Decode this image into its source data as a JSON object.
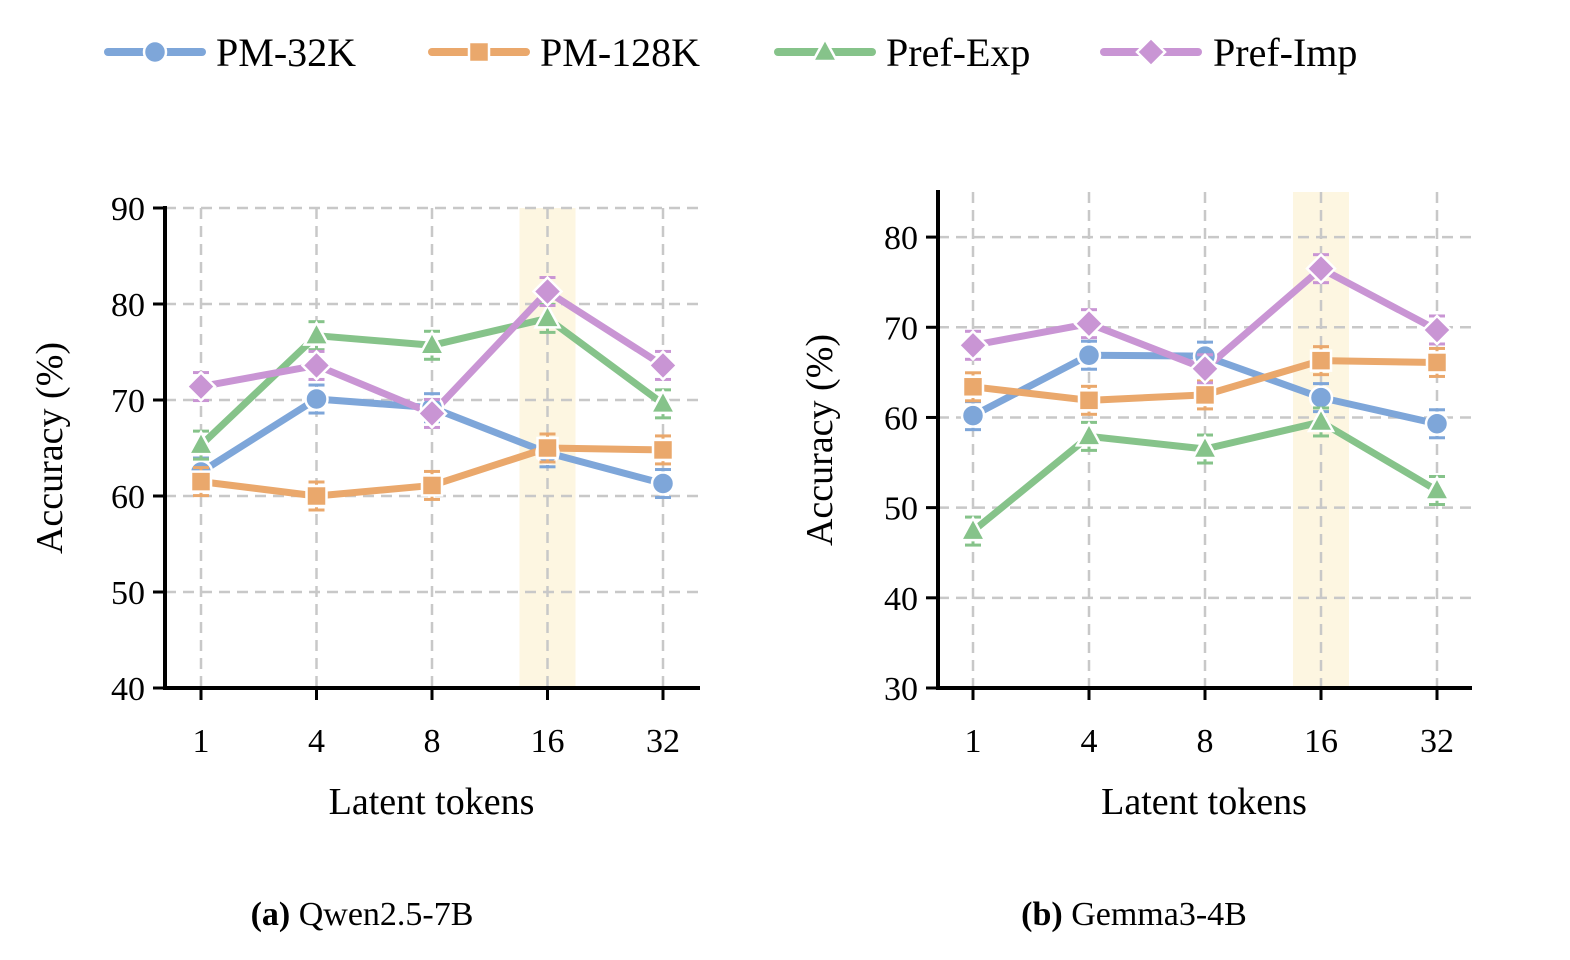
{
  "legend": [
    {
      "name": "PM-32K",
      "color": "#7ea6d9",
      "marker": "circle"
    },
    {
      "name": "PM-128K",
      "color": "#eaa86c",
      "marker": "square"
    },
    {
      "name": "Pref-Exp",
      "color": "#86c38a",
      "marker": "triangle"
    },
    {
      "name": "Pref-Imp",
      "color": "#c995d4",
      "marker": "diamond"
    }
  ],
  "highlight_color": "#fdf6e1",
  "chart_data": [
    {
      "type": "line",
      "caption_prefix": "(a)",
      "caption_text": "Qwen2.5-7B",
      "xlabel": "Latent tokens",
      "ylabel": "Accuracy (%)",
      "categories": [
        "1",
        "4",
        "8",
        "16",
        "32"
      ],
      "ylim": [
        40,
        90
      ],
      "yticks": [
        40,
        50,
        60,
        70,
        80,
        90
      ],
      "grid": true,
      "highlight_category": "16",
      "series": [
        {
          "name": "PM-32K",
          "values": [
            62.5,
            70.1,
            69.2,
            64.5,
            61.3
          ]
        },
        {
          "name": "PM-128K",
          "values": [
            61.5,
            60.0,
            61.1,
            65.0,
            64.8
          ]
        },
        {
          "name": "Pref-Exp",
          "values": [
            65.3,
            76.7,
            75.7,
            78.5,
            69.6
          ]
        },
        {
          "name": "Pref-Imp",
          "values": [
            71.4,
            73.6,
            68.6,
            81.3,
            73.6
          ]
        }
      ]
    },
    {
      "type": "line",
      "caption_prefix": "(b)",
      "caption_text": "Gemma3-4B",
      "xlabel": "Latent tokens",
      "ylabel": "Accuracy (%)",
      "categories": [
        "1",
        "4",
        "8",
        "16",
        "32"
      ],
      "ylim": [
        30,
        85
      ],
      "yticks": [
        30,
        40,
        50,
        60,
        70,
        80
      ],
      "grid": true,
      "highlight_category": "16",
      "series": [
        {
          "name": "PM-32K",
          "values": [
            60.2,
            66.9,
            66.8,
            62.2,
            59.3
          ]
        },
        {
          "name": "PM-128K",
          "values": [
            63.4,
            61.9,
            62.5,
            66.3,
            66.1
          ]
        },
        {
          "name": "Pref-Exp",
          "values": [
            47.4,
            57.9,
            56.5,
            59.5,
            51.9
          ]
        },
        {
          "name": "Pref-Imp",
          "values": [
            68.0,
            70.4,
            65.4,
            76.5,
            69.7
          ]
        }
      ]
    }
  ]
}
